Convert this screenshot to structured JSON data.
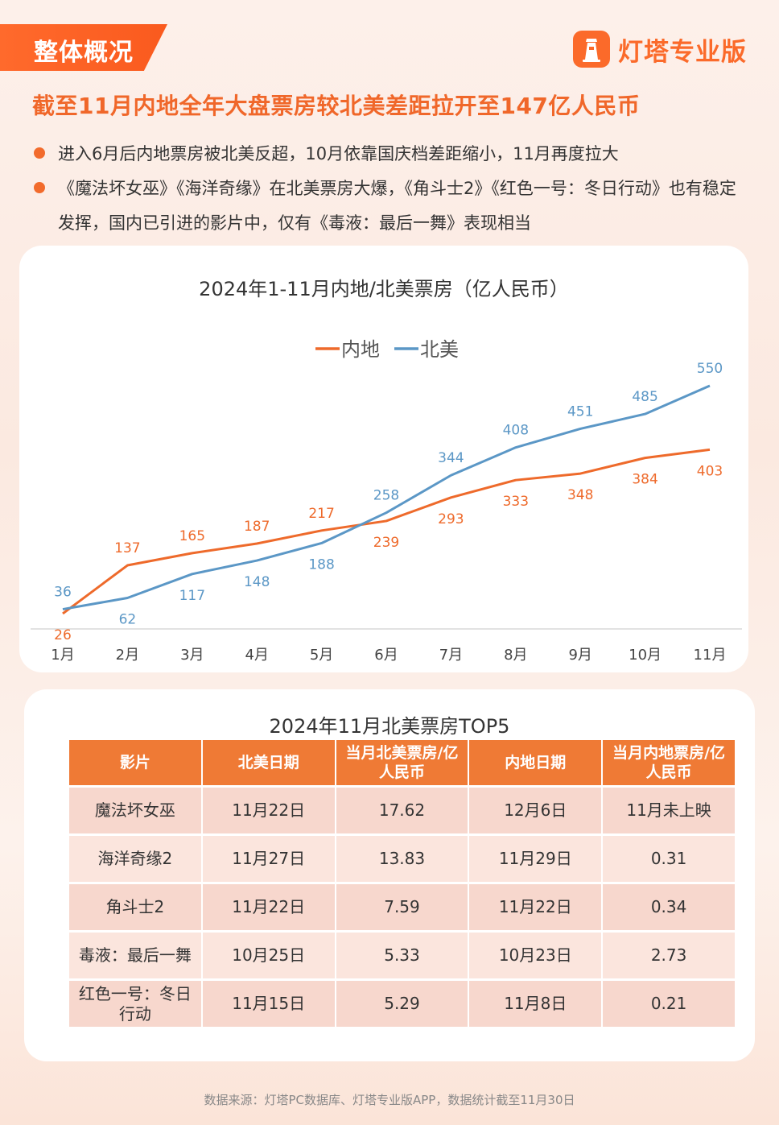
{
  "header": {
    "section_tag": "整体概况",
    "brand_name": "灯塔专业版",
    "headline": "截至11月内地全年大盘票房较北美差距拉开至147亿人民币"
  },
  "bullets": [
    "进入6月后内地票房被北美反超，10月依靠国庆档差距缩小，11月再度拉大",
    "《魔法坏女巫》《海洋奇缘》在北美票房大爆，《角斗士2》《红色一号：冬日行动》也有稳定发挥，国内已引进的影片中，仅有《毒液：最后一舞》表现相当"
  ],
  "chart_data": {
    "type": "line",
    "title": "2024年1-11月内地/北美票房（亿人民币）",
    "categories": [
      "1月",
      "2月",
      "3月",
      "4月",
      "5月",
      "6月",
      "7月",
      "8月",
      "9月",
      "10月",
      "11月"
    ],
    "series": [
      {
        "name": "内地",
        "color": "#ee6a2b",
        "values": [
          26,
          137,
          165,
          187,
          217,
          239,
          293,
          333,
          348,
          384,
          403
        ]
      },
      {
        "name": "北美",
        "color": "#5b97c6",
        "values": [
          36,
          62,
          117,
          148,
          188,
          258,
          344,
          408,
          451,
          485,
          550
        ]
      }
    ],
    "legend_position": "top-center",
    "grid": false
  },
  "table": {
    "title": "2024年11月北美票房TOP5",
    "headers": [
      "影片",
      "北美日期",
      "当月北美票房/亿人民币",
      "内地日期",
      "当月内地票房/亿人民币"
    ],
    "rows": [
      [
        "魔法坏女巫",
        "11月22日",
        "17.62",
        "12月6日",
        "11月未上映"
      ],
      [
        "海洋奇缘2",
        "11月27日",
        "13.83",
        "11月29日",
        "0.31"
      ],
      [
        "角斗士2",
        "11月22日",
        "7.59",
        "11月22日",
        "0.34"
      ],
      [
        "毒液：最后一舞",
        "10月25日",
        "5.33",
        "10月23日",
        "2.73"
      ],
      [
        "红色一号：冬日行动",
        "11月15日",
        "5.29",
        "11月8日",
        "0.21"
      ]
    ]
  },
  "footer": "数据来源：灯塔PC数据库、灯塔专业版APP，数据统计截至11月30日"
}
